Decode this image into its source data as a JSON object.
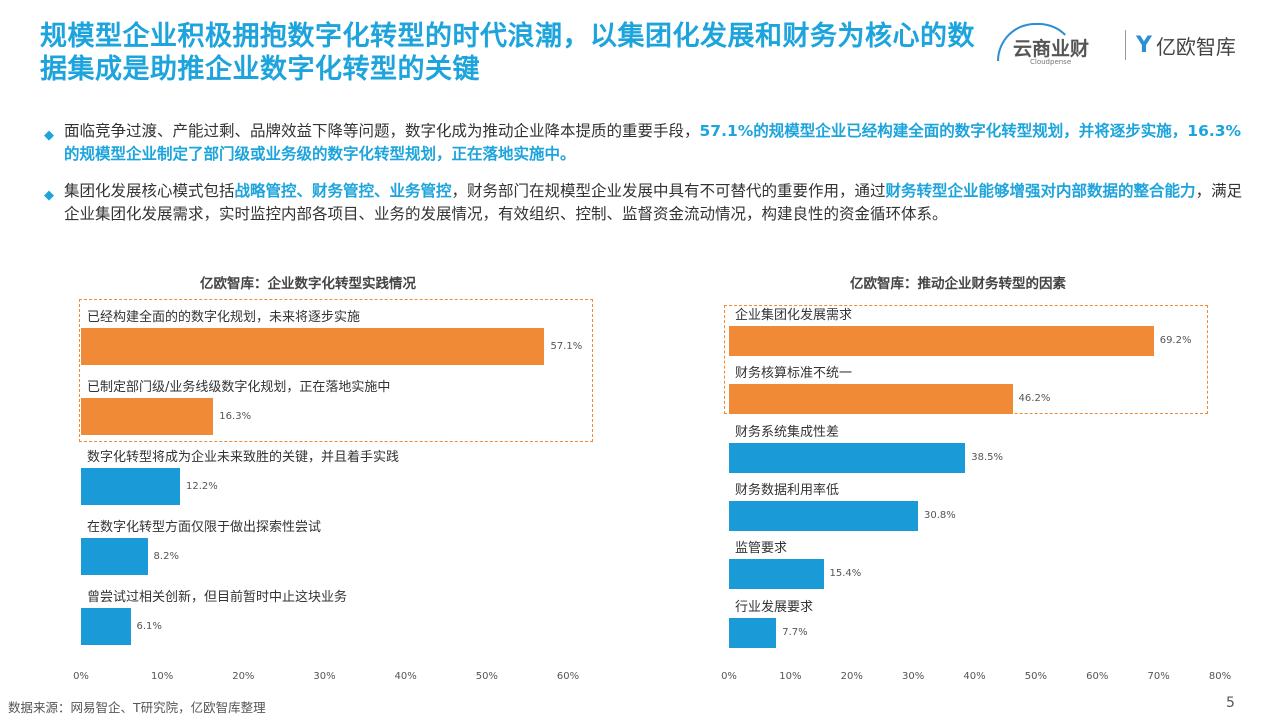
{
  "header": {
    "title": "规模型企业积极拥抱数字化转型的时代浪潮，以集团化发展和财务为核心的数据集成是助推企业数字化转型的关键",
    "logo_cloudpense_cn": "云商业财",
    "logo_cloudpense_en": "Cloudpense",
    "logo_yiou": "亿欧智库"
  },
  "bullets": [
    {
      "segments": [
        {
          "t": "面临竞争过渡、产能过剩、品牌效益下降等问题，数字化成为推动企业降本提质的重要手段，",
          "h": false
        },
        {
          "t": "57.1%的规模型企业已经构建全面的数字化转型规划，并将逐步实施，16.3%的规模型企业制定了部门级或业务级的数字化转型规划，正在落地实施中。",
          "h": true
        }
      ]
    },
    {
      "segments": [
        {
          "t": "集团化发展核心模式包括",
          "h": false
        },
        {
          "t": "战略管控、财务管控、业务管控",
          "h": true
        },
        {
          "t": "，财务部门在规模型企业发展中具有不可替代的重要作用，通过",
          "h": false
        },
        {
          "t": "财务转型企业能够增强对内部数据的整合能力",
          "h": true
        },
        {
          "t": "，满足企业集团化发展需求，实时监控内部各项目、业务的发展情况，有效组织、控制、监督资金流动情况，构建良性的资金循环体系。",
          "h": false
        }
      ]
    }
  ],
  "colors": {
    "accent": "#1ea4dc",
    "orange": "#f08a36",
    "blue": "#1a9bd7"
  },
  "chart_data": [
    {
      "type": "bar",
      "orientation": "horizontal",
      "title": "亿欧智库：企业数字化转型实践情况",
      "categories": [
        "已经构建全面的的数字化规划，未来将逐步实施",
        "已制定部门级/业务线级数字化规划，正在落地实施中",
        "数字化转型将成为企业未来致胜的关键，并且着手实践",
        "在数字化转型方面仅限于做出探索性尝试",
        "曾尝试过相关创新，但目前暂时中止这块业务"
      ],
      "values": [
        57.1,
        16.3,
        12.2,
        8.2,
        6.1
      ],
      "highlighted": [
        true,
        true,
        false,
        false,
        false
      ],
      "xlim": [
        0,
        60
      ],
      "xticks": [
        "0%",
        "10%",
        "20%",
        "30%",
        "40%",
        "50%",
        "60%"
      ],
      "unit": "%"
    },
    {
      "type": "bar",
      "orientation": "horizontal",
      "title": "亿欧智库：推动企业财务转型的因素",
      "categories": [
        "企业集团化发展需求",
        "财务核算标准不统一",
        "财务系统集成性差",
        "财务数据利用率低",
        "监管要求",
        "行业发展要求"
      ],
      "values": [
        69.2,
        46.2,
        38.5,
        30.8,
        15.4,
        7.7
      ],
      "highlighted": [
        true,
        true,
        false,
        false,
        false,
        false
      ],
      "xlim": [
        0,
        80
      ],
      "xticks": [
        "0%",
        "10%",
        "20%",
        "30%",
        "40%",
        "50%",
        "60%",
        "70%",
        "80%"
      ],
      "unit": "%"
    }
  ],
  "footer": {
    "source": "数据来源：网易智企、T研究院，亿欧智库整理",
    "page": "5"
  }
}
